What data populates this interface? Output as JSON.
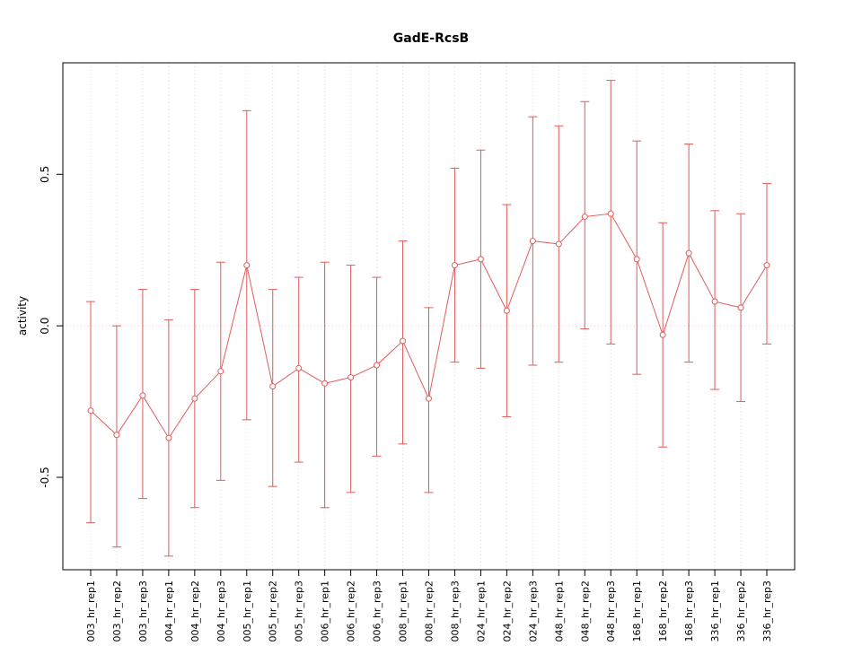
{
  "chart_data": {
    "type": "line",
    "title": "GadE-RcsB",
    "xlabel": "",
    "ylabel": "activity",
    "ylim": [
      -0.805,
      0.868
    ],
    "yticks": [
      "-0.5",
      "0.0",
      "0.5"
    ],
    "ytick_values": [
      -0.5,
      0.0,
      0.5
    ],
    "grid": "vertical-dotted-per-category",
    "reference_line_y": 0,
    "legend": "none",
    "marker": "open-circle",
    "colors": {
      "series": "#e05c5c",
      "grid": "#d9d9d9",
      "zero_line": "#f3c0c0",
      "box": "#000000",
      "background": "#ffffff"
    },
    "categories": [
      "003_hr_rep1",
      "003_hr_rep2",
      "003_hr_rep3",
      "004_hr_rep1",
      "004_hr_rep2",
      "004_hr_rep3",
      "005_hr_rep1",
      "005_hr_rep2",
      "005_hr_rep3",
      "006_hr_rep1",
      "006_hr_rep2",
      "006_hr_rep3",
      "008_hr_rep1",
      "008_hr_rep2",
      "008_hr_rep3",
      "024_hr_rep1",
      "024_hr_rep2",
      "024_hr_rep3",
      "048_hr_rep1",
      "048_hr_rep2",
      "048_hr_rep3",
      "168_hr_rep1",
      "168_hr_rep2",
      "168_hr_rep3",
      "336_hr_rep1",
      "336_hr_rep2",
      "336_hr_rep3"
    ],
    "values": [
      -0.28,
      -0.36,
      -0.23,
      -0.37,
      -0.24,
      -0.15,
      0.2,
      -0.2,
      -0.14,
      -0.19,
      -0.17,
      -0.13,
      -0.05,
      -0.24,
      0.2,
      0.22,
      0.05,
      0.28,
      0.27,
      0.36,
      0.37,
      0.22,
      -0.03,
      0.24,
      0.08,
      0.06,
      0.2
    ],
    "error_low": [
      -0.65,
      -0.73,
      -0.57,
      -0.76,
      -0.6,
      -0.51,
      -0.31,
      -0.53,
      -0.45,
      -0.6,
      -0.55,
      -0.43,
      -0.39,
      -0.55,
      -0.12,
      -0.14,
      -0.3,
      -0.13,
      -0.12,
      -0.01,
      -0.06,
      -0.16,
      -0.4,
      -0.12,
      -0.21,
      -0.25,
      -0.06
    ],
    "error_high": [
      0.08,
      0.0,
      0.12,
      0.02,
      0.12,
      0.21,
      0.71,
      0.12,
      0.16,
      0.21,
      0.2,
      0.16,
      0.28,
      0.06,
      0.52,
      0.58,
      0.4,
      0.69,
      0.66,
      0.74,
      0.81,
      0.61,
      0.34,
      0.6,
      0.38,
      0.37,
      0.47
    ]
  }
}
